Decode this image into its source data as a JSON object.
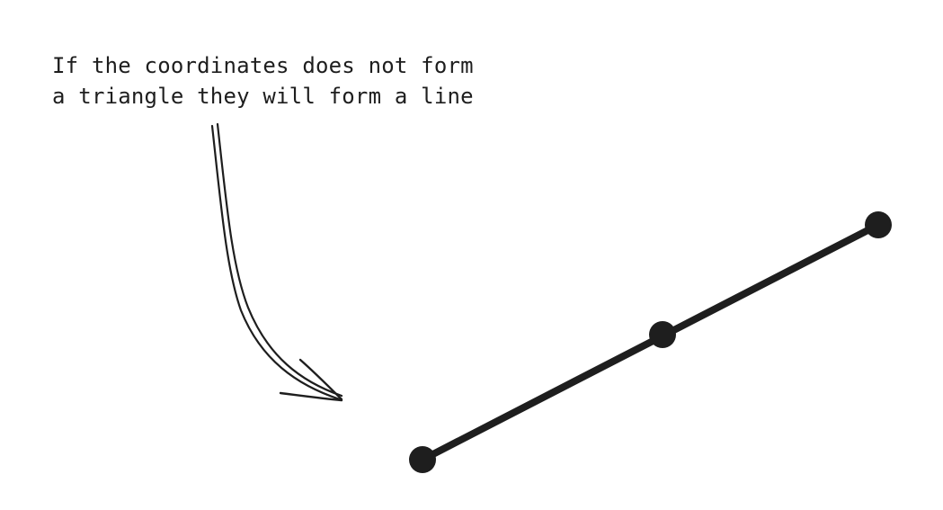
{
  "annotation": {
    "lines": [
      "If the coordinates does not form",
      "a triangle they will form a line"
    ]
  },
  "colors": {
    "ink": "#1e1e1e",
    "background": "#ffffff"
  },
  "icons": {
    "arrow": "curved-arrow-icon"
  }
}
